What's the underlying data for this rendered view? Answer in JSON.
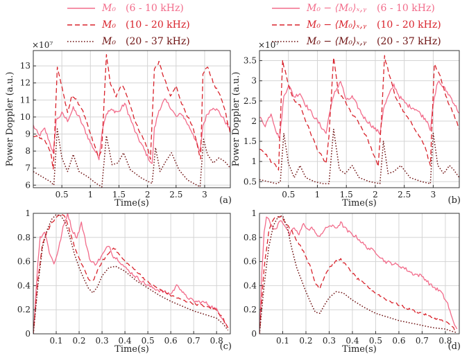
{
  "legends": [
    {
      "items": [
        {
          "name": "M₀",
          "band": "(6 - 10 kHz)",
          "color": "#f26b8a",
          "dash": "solid"
        },
        {
          "name": "M₀",
          "band": "(10 - 20 kHz)",
          "color": "#d8222b",
          "dash": "dashed"
        },
        {
          "name": "M₀",
          "band": "(20 - 37 kHz)",
          "color": "#6e1212",
          "dash": "dotted"
        }
      ]
    },
    {
      "items": [
        {
          "name": "M₀ − ⟨M₀⟩ₓ,ᵧ",
          "band": "(6 - 10 kHz)",
          "color": "#f26b8a",
          "dash": "solid"
        },
        {
          "name": "M₀ − ⟨M₀⟩ₓ,ᵧ",
          "band": "(10 - 20 kHz)",
          "color": "#d8222b",
          "dash": "dashed"
        },
        {
          "name": "M₀ − ⟨M₀⟩ₓ,ᵧ",
          "band": "(20 - 37 kHz)",
          "color": "#6e1212",
          "dash": "dotted"
        }
      ]
    }
  ],
  "chart_data": [
    {
      "panel": "(a)",
      "type": "line",
      "xlabel": "Time(s)",
      "ylabel": "Power Doppler (a.u.)",
      "yexponent": "×10⁷",
      "xlim": [
        0,
        3.45
      ],
      "ylim": [
        5.85,
        13.9
      ],
      "xticks": [
        0.5,
        1,
        1.5,
        2,
        2.5,
        3
      ],
      "xticklabels": [
        "0.5",
        "1",
        "1.5",
        "2",
        "2.5",
        "3"
      ],
      "yticks": [
        6,
        7,
        8,
        9,
        10,
        11,
        12,
        13
      ],
      "yticklabels": [
        "6",
        "7",
        "8",
        "9",
        "10",
        "11",
        "12",
        "13"
      ],
      "grid": true,
      "series": [
        {
          "style": "solid",
          "x": [
            0,
            0.1,
            0.2,
            0.3,
            0.35,
            0.4,
            0.5,
            0.6,
            0.7,
            0.8,
            1.0,
            1.15,
            1.22,
            1.28,
            1.35,
            1.5,
            1.6,
            1.8,
            2.0,
            2.08,
            2.12,
            2.2,
            2.3,
            2.4,
            2.5,
            2.6,
            2.8,
            2.92,
            2.97,
            3.05,
            3.15,
            3.25,
            3.35,
            3.45
          ],
          "y": [
            9.5,
            8.9,
            9.3,
            8.4,
            7.8,
            9.8,
            10.2,
            9.8,
            10.5,
            10.0,
            8.5,
            7.6,
            9.5,
            10.2,
            10.4,
            10.3,
            10.8,
            9.0,
            7.7,
            7.2,
            9.3,
            10.4,
            11.0,
            10.6,
            10.0,
            10.2,
            9.0,
            7.9,
            9.5,
            10.2,
            10.6,
            10.3,
            9.8,
            9.2
          ]
        },
        {
          "style": "dashed",
          "x": [
            0,
            0.1,
            0.2,
            0.3,
            0.35,
            0.42,
            0.5,
            0.6,
            0.68,
            0.75,
            0.85,
            1.0,
            1.15,
            1.2,
            1.28,
            1.35,
            1.45,
            1.55,
            1.65,
            1.8,
            2.0,
            2.05,
            2.12,
            2.2,
            2.3,
            2.4,
            2.5,
            2.6,
            2.8,
            2.93,
            2.97,
            3.05,
            3.15,
            3.25,
            3.35,
            3.45
          ],
          "y": [
            8.9,
            8.8,
            8.6,
            8.0,
            7.0,
            12.9,
            11.8,
            10.2,
            11.3,
            11.0,
            10.5,
            9.0,
            7.6,
            8.2,
            13.6,
            12.0,
            11.2,
            11.9,
            11.2,
            9.6,
            8.2,
            7.5,
            12.8,
            13.2,
            12.2,
            11.2,
            11.8,
            10.8,
            9.3,
            7.5,
            12.5,
            13.0,
            12.0,
            11.4,
            10.5,
            9.0
          ]
        },
        {
          "style": "dotted",
          "x": [
            0,
            0.15,
            0.3,
            0.36,
            0.42,
            0.5,
            0.6,
            0.7,
            0.8,
            0.95,
            1.1,
            1.2,
            1.28,
            1.38,
            1.48,
            1.58,
            1.7,
            1.9,
            2.08,
            2.14,
            2.22,
            2.32,
            2.42,
            2.55,
            2.7,
            2.92,
            2.98,
            3.05,
            3.15,
            3.25,
            3.35,
            3.45
          ],
          "y": [
            6.8,
            6.5,
            6.2,
            6.0,
            9.3,
            7.6,
            6.8,
            7.8,
            6.8,
            6.5,
            6.1,
            5.9,
            8.9,
            7.2,
            7.3,
            7.9,
            6.9,
            6.4,
            6.1,
            8.2,
            6.8,
            7.4,
            7.9,
            6.9,
            6.3,
            5.9,
            8.7,
            7.8,
            7.3,
            7.6,
            7.4,
            7.0
          ]
        }
      ]
    },
    {
      "panel": "(b)",
      "type": "line",
      "xlabel": "Time(s)",
      "ylabel": "Power Doppler (a.u.)",
      "yexponent": "×10⁷",
      "xlim": [
        0,
        3.45
      ],
      "ylim": [
        0.35,
        3.75
      ],
      "xticks": [
        0.5,
        1,
        1.5,
        2,
        2.5,
        3
      ],
      "xticklabels": [
        "0.5",
        "1",
        "1.5",
        "2",
        "2.5",
        "3"
      ],
      "yticks": [
        0.5,
        1,
        1.5,
        2,
        2.5,
        3,
        3.5
      ],
      "yticklabels": [
        "0.5",
        "1",
        "1.5",
        "2",
        "2.5",
        "3",
        "3.5"
      ],
      "grid": true,
      "series": [
        {
          "style": "solid",
          "x": [
            0,
            0.1,
            0.2,
            0.3,
            0.35,
            0.42,
            0.5,
            0.6,
            0.7,
            0.8,
            1.0,
            1.15,
            1.22,
            1.3,
            1.4,
            1.5,
            1.6,
            1.8,
            2.0,
            2.08,
            2.14,
            2.22,
            2.32,
            2.42,
            2.55,
            2.7,
            2.9,
            2.95,
            3.0,
            3.08,
            3.2,
            3.3,
            3.45
          ],
          "y": [
            2.1,
            1.9,
            2.2,
            1.7,
            1.6,
            2.6,
            2.9,
            2.6,
            2.7,
            2.4,
            2.0,
            1.7,
            2.3,
            2.7,
            3.0,
            2.5,
            2.6,
            2.1,
            1.8,
            1.7,
            2.3,
            2.6,
            2.9,
            2.6,
            2.4,
            2.3,
            2.0,
            1.8,
            2.4,
            3.0,
            2.8,
            2.6,
            2.2
          ]
        },
        {
          "style": "dashed",
          "x": [
            0,
            0.1,
            0.2,
            0.28,
            0.33,
            0.4,
            0.48,
            0.6,
            0.7,
            0.8,
            1.0,
            1.15,
            1.2,
            1.28,
            1.36,
            1.48,
            1.58,
            1.7,
            1.85,
            2.05,
            2.1,
            2.16,
            2.25,
            2.35,
            2.5,
            2.65,
            2.85,
            2.95,
            3.02,
            3.12,
            3.22,
            3.35,
            3.45
          ],
          "y": [
            1.3,
            1.2,
            1.0,
            0.9,
            0.8,
            3.5,
            3.0,
            2.5,
            2.4,
            2.0,
            1.3,
            0.95,
            1.6,
            3.6,
            2.7,
            2.5,
            2.2,
            2.0,
            1.6,
            0.9,
            1.9,
            3.6,
            3.1,
            2.6,
            2.2,
            1.9,
            1.4,
            0.9,
            3.4,
            3.1,
            2.6,
            2.2,
            1.8
          ]
        },
        {
          "style": "dotted",
          "x": [
            0,
            0.15,
            0.3,
            0.36,
            0.42,
            0.5,
            0.6,
            0.7,
            0.8,
            0.95,
            1.1,
            1.2,
            1.28,
            1.38,
            1.48,
            1.6,
            1.72,
            1.9,
            2.08,
            2.14,
            2.22,
            2.32,
            2.44,
            2.6,
            2.8,
            2.95,
            3.0,
            3.08,
            3.18,
            3.28,
            3.35,
            3.45
          ],
          "y": [
            0.55,
            0.5,
            0.45,
            0.5,
            1.7,
            0.95,
            0.6,
            0.9,
            0.6,
            0.5,
            0.45,
            0.45,
            1.8,
            0.8,
            0.7,
            0.9,
            0.6,
            0.5,
            0.45,
            1.5,
            0.7,
            0.75,
            0.9,
            0.6,
            0.5,
            0.45,
            1.7,
            0.9,
            0.7,
            0.9,
            0.8,
            0.6
          ]
        }
      ]
    },
    {
      "panel": "(c)",
      "type": "line",
      "xlabel": "Time(s)",
      "ylabel": "",
      "yexponent": "",
      "xlim": [
        0,
        0.86
      ],
      "ylim": [
        0,
        1
      ],
      "xticks": [
        0.1,
        0.2,
        0.3,
        0.4,
        0.5,
        0.6,
        0.7,
        0.8
      ],
      "xticklabels": [
        "0.1",
        "0.2",
        "0.3",
        "0.4",
        "0.5",
        "0.6",
        "0.7",
        "0.8"
      ],
      "yticks": [
        0,
        0.2,
        0.4,
        0.6,
        0.8,
        1
      ],
      "yticklabels": [
        "0",
        "0.2",
        "0.4",
        "0.6",
        "0.8",
        "1"
      ],
      "grid": true,
      "series": [
        {
          "style": "solid",
          "x": [
            0,
            0.01,
            0.02,
            0.03,
            0.05,
            0.07,
            0.09,
            0.11,
            0.13,
            0.15,
            0.17,
            0.19,
            0.21,
            0.23,
            0.25,
            0.27,
            0.29,
            0.31,
            0.33,
            0.35,
            0.37,
            0.4,
            0.45,
            0.5,
            0.55,
            0.6,
            0.63,
            0.66,
            0.7,
            0.75,
            0.8,
            0.83,
            0.85
          ],
          "y": [
            0,
            0.3,
            0.6,
            0.8,
            0.85,
            0.68,
            0.58,
            0.7,
            0.88,
            1.0,
            0.86,
            0.8,
            0.92,
            0.75,
            0.6,
            0.58,
            0.62,
            0.68,
            0.74,
            0.64,
            0.62,
            0.55,
            0.47,
            0.4,
            0.36,
            0.33,
            0.41,
            0.32,
            0.27,
            0.26,
            0.2,
            0.12,
            0.05
          ]
        },
        {
          "style": "dashed",
          "x": [
            0,
            0.02,
            0.04,
            0.06,
            0.08,
            0.1,
            0.12,
            0.14,
            0.16,
            0.18,
            0.2,
            0.22,
            0.24,
            0.26,
            0.28,
            0.3,
            0.33,
            0.35,
            0.37,
            0.4,
            0.45,
            0.5,
            0.55,
            0.6,
            0.65,
            0.7,
            0.75,
            0.8,
            0.83,
            0.85
          ],
          "y": [
            0,
            0.45,
            0.75,
            0.85,
            0.92,
            0.96,
            0.99,
            0.97,
            0.85,
            0.72,
            0.62,
            0.55,
            0.45,
            0.44,
            0.52,
            0.6,
            0.67,
            0.72,
            0.67,
            0.6,
            0.52,
            0.43,
            0.37,
            0.32,
            0.28,
            0.25,
            0.23,
            0.2,
            0.12,
            0.05
          ]
        },
        {
          "style": "dotted",
          "x": [
            0,
            0.02,
            0.04,
            0.06,
            0.08,
            0.1,
            0.12,
            0.14,
            0.16,
            0.18,
            0.2,
            0.22,
            0.24,
            0.26,
            0.28,
            0.3,
            0.33,
            0.36,
            0.4,
            0.45,
            0.5,
            0.55,
            0.6,
            0.65,
            0.7,
            0.75,
            0.8,
            0.83,
            0.85
          ],
          "y": [
            0,
            0.4,
            0.72,
            0.86,
            0.95,
            0.99,
            0.98,
            0.92,
            0.8,
            0.66,
            0.55,
            0.46,
            0.38,
            0.34,
            0.39,
            0.48,
            0.55,
            0.56,
            0.52,
            0.44,
            0.38,
            0.32,
            0.27,
            0.23,
            0.19,
            0.16,
            0.13,
            0.08,
            0.03
          ]
        }
      ]
    },
    {
      "panel": "(d)",
      "type": "line",
      "xlabel": "Time(s)",
      "ylabel": "",
      "yexponent": "",
      "xlim": [
        0,
        0.86
      ],
      "ylim": [
        0,
        1
      ],
      "xticks": [
        0.1,
        0.2,
        0.3,
        0.4,
        0.5,
        0.6,
        0.7,
        0.8
      ],
      "xticklabels": [
        "0.1",
        "0.2",
        "0.3",
        "0.4",
        "0.5",
        "0.6",
        "0.7",
        "0.8"
      ],
      "yticks": [
        0,
        0.2,
        0.4,
        0.6,
        0.8,
        1
      ],
      "yticklabels": [
        "0",
        "0.2",
        "0.4",
        "0.6",
        "0.8",
        "1"
      ],
      "grid": true,
      "series": [
        {
          "style": "solid",
          "x": [
            0,
            0.01,
            0.02,
            0.03,
            0.05,
            0.07,
            0.09,
            0.11,
            0.13,
            0.15,
            0.17,
            0.19,
            0.21,
            0.23,
            0.25,
            0.27,
            0.3,
            0.33,
            0.35,
            0.38,
            0.42,
            0.46,
            0.5,
            0.54,
            0.58,
            0.62,
            0.66,
            0.7,
            0.74,
            0.78,
            0.81,
            0.83,
            0.85
          ],
          "y": [
            0,
            0.5,
            0.85,
            0.98,
            0.9,
            0.86,
            0.95,
            0.9,
            0.82,
            0.88,
            0.82,
            0.92,
            0.86,
            0.88,
            0.8,
            0.84,
            0.9,
            0.88,
            0.92,
            0.85,
            0.8,
            0.72,
            0.68,
            0.6,
            0.58,
            0.55,
            0.5,
            0.48,
            0.4,
            0.35,
            0.25,
            0.12,
            0.04
          ]
        },
        {
          "style": "dashed",
          "x": [
            0,
            0.02,
            0.04,
            0.06,
            0.08,
            0.1,
            0.12,
            0.14,
            0.16,
            0.18,
            0.2,
            0.22,
            0.24,
            0.26,
            0.28,
            0.3,
            0.33,
            0.35,
            0.38,
            0.42,
            0.46,
            0.5,
            0.55,
            0.6,
            0.65,
            0.7,
            0.75,
            0.8,
            0.83,
            0.85
          ],
          "y": [
            0,
            0.55,
            0.85,
            0.95,
            0.98,
            0.96,
            0.9,
            0.85,
            0.78,
            0.72,
            0.64,
            0.55,
            0.42,
            0.38,
            0.48,
            0.55,
            0.6,
            0.62,
            0.55,
            0.46,
            0.4,
            0.34,
            0.28,
            0.24,
            0.2,
            0.17,
            0.13,
            0.1,
            0.06,
            0.02
          ]
        },
        {
          "style": "dotted",
          "x": [
            0,
            0.02,
            0.04,
            0.06,
            0.08,
            0.1,
            0.12,
            0.14,
            0.16,
            0.18,
            0.2,
            0.22,
            0.24,
            0.26,
            0.28,
            0.3,
            0.33,
            0.36,
            0.4,
            0.45,
            0.5,
            0.55,
            0.6,
            0.65,
            0.7,
            0.75,
            0.8,
            0.83,
            0.85
          ],
          "y": [
            0,
            0.4,
            0.72,
            0.9,
            0.97,
            0.98,
            0.88,
            0.7,
            0.55,
            0.45,
            0.35,
            0.26,
            0.18,
            0.17,
            0.24,
            0.3,
            0.35,
            0.34,
            0.28,
            0.22,
            0.17,
            0.14,
            0.11,
            0.09,
            0.07,
            0.05,
            0.04,
            0.02,
            0.01
          ]
        }
      ]
    }
  ]
}
